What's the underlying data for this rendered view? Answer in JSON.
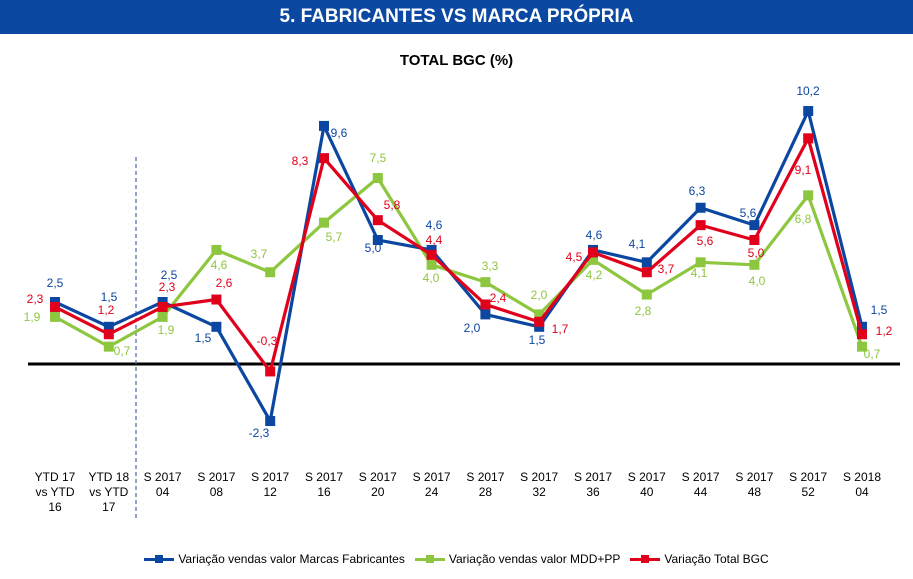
{
  "header": {
    "title": "5. FABRICANTES VS MARCA PRÓPRIA"
  },
  "chart_data": {
    "type": "line",
    "title": "TOTAL BGC (%)",
    "categories": [
      "YTD 17\nvs YTD\n16",
      "YTD 18\nvs YTD\n17",
      "S 2017\n04",
      "S 2017\n08",
      "S 2017\n12",
      "S 2017\n16",
      "S 2017\n20",
      "S 2017\n24",
      "S 2017\n28",
      "S 2017\n32",
      "S 2017\n36",
      "S 2017\n40",
      "S 2017\n44",
      "S 2017\n48",
      "S 2017\n52",
      "S 2018\n04"
    ],
    "series": [
      {
        "name": "Variação vendas valor Marcas Fabricantes",
        "color": "#0b47a1",
        "values": [
          2.5,
          1.5,
          2.5,
          1.5,
          -2.3,
          9.6,
          5.0,
          4.6,
          2.0,
          1.5,
          4.6,
          4.1,
          6.3,
          5.6,
          10.2,
          1.5
        ]
      },
      {
        "name": "Variação vendas valor MDD+PP",
        "color": "#8dc63f",
        "values": [
          1.9,
          0.7,
          1.9,
          4.6,
          3.7,
          5.7,
          7.5,
          4.0,
          3.3,
          2.0,
          4.2,
          2.8,
          4.1,
          4.0,
          6.8,
          0.7
        ]
      },
      {
        "name": "Variação Total BGC",
        "color": "#e0001b",
        "values": [
          2.3,
          1.2,
          2.3,
          2.6,
          -0.3,
          8.3,
          5.8,
          4.4,
          2.4,
          1.7,
          4.5,
          3.7,
          5.6,
          5.0,
          9.1,
          1.2
        ]
      }
    ],
    "decimal_separator": ",",
    "zero_line": true,
    "grid": false,
    "legend_position": "bottom",
    "divider_after_category": 1
  }
}
